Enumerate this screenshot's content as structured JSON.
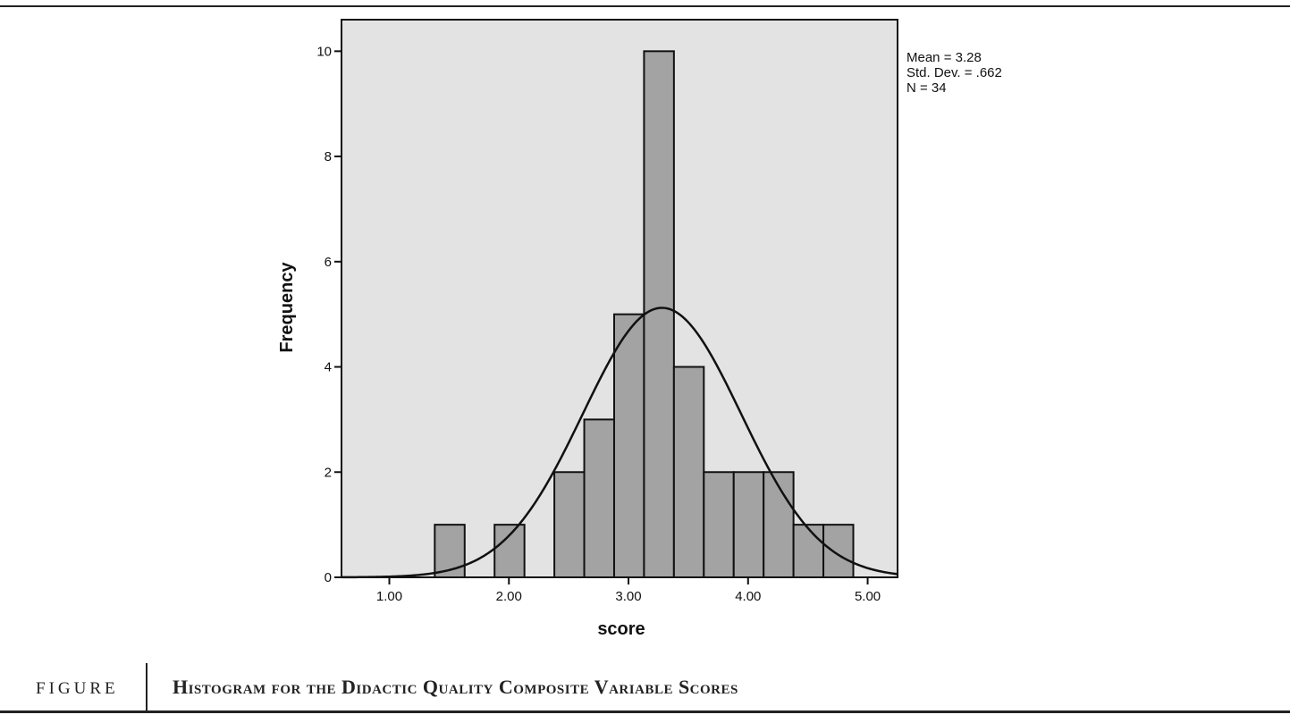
{
  "caption": {
    "label": "FIGURE",
    "title": "Histogram for the Didactic Quality Composite Variable Scores"
  },
  "chart_data": {
    "type": "histogram",
    "xlabel": "score",
    "ylabel": "Frequency",
    "xlim": [
      0.6,
      5.25
    ],
    "ylim": [
      0,
      10.6
    ],
    "xticks": [
      1.0,
      2.0,
      3.0,
      4.0,
      5.0
    ],
    "xtick_labels": [
      "1.00",
      "2.00",
      "3.00",
      "4.00",
      "5.00"
    ],
    "yticks": [
      0,
      2,
      4,
      6,
      8,
      10
    ],
    "ytick_labels": [
      "0",
      "2",
      "4",
      "6",
      "8",
      "10"
    ],
    "bins": [
      {
        "start": 1.38,
        "end": 1.63,
        "count": 1
      },
      {
        "start": 1.88,
        "end": 2.13,
        "count": 1
      },
      {
        "start": 2.38,
        "end": 2.63,
        "count": 2
      },
      {
        "start": 2.63,
        "end": 2.88,
        "count": 3
      },
      {
        "start": 2.88,
        "end": 3.13,
        "count": 5
      },
      {
        "start": 3.13,
        "end": 3.38,
        "count": 10
      },
      {
        "start": 3.38,
        "end": 3.63,
        "count": 4
      },
      {
        "start": 3.63,
        "end": 3.88,
        "count": 2
      },
      {
        "start": 3.88,
        "end": 4.13,
        "count": 2
      },
      {
        "start": 4.13,
        "end": 4.38,
        "count": 2
      },
      {
        "start": 4.38,
        "end": 4.63,
        "count": 1
      },
      {
        "start": 4.63,
        "end": 4.88,
        "count": 1
      }
    ],
    "normal_curve": {
      "mean": 3.28,
      "sd": 0.662,
      "n": 34
    },
    "stats_text": [
      "Mean = 3.28",
      "Std. Dev. = .662",
      "N = 34"
    ],
    "colors": {
      "plot_bg": "#e3e3e3",
      "bar_fill": "#a3a3a3",
      "stroke": "#111111"
    }
  }
}
